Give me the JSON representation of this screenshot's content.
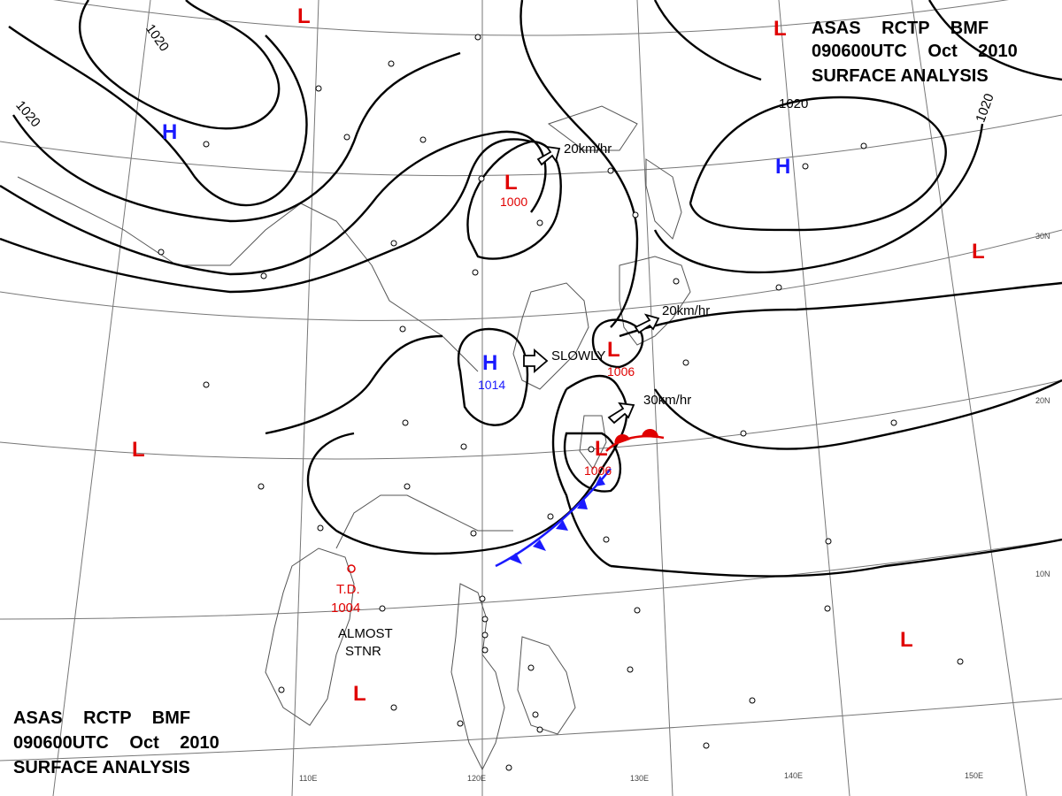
{
  "header_top": {
    "line1": "ASAS RCTP BMF",
    "line2": "090600UTC Oct 2010",
    "line3": "SURFACE ANALYSIS"
  },
  "header_bottom": {
    "line1": "ASAS RCTP BMF",
    "line2": "090600UTC Oct 2010",
    "line3": "SURFACE ANALYSIS"
  },
  "longitudes": [
    "110E",
    "120E",
    "130E",
    "140E",
    "150E"
  ],
  "latitudes": [
    "30N",
    "20N",
    "10N"
  ],
  "isobars": [
    "1020",
    "1020",
    "1020",
    "1020"
  ],
  "systems": {
    "high_nw": "H",
    "high_ne": "H",
    "high_center": {
      "symbol": "H",
      "pressure": "1014"
    },
    "low_north": {
      "symbol": "L",
      "pressure": "1000"
    },
    "low_east": {
      "symbol": "L",
      "pressure": "1006"
    },
    "low_front": {
      "symbol": "L",
      "pressure": "1006"
    },
    "td": {
      "label": "T.D.",
      "pressure": "1004"
    },
    "lows_misc": [
      "L",
      "L",
      "L",
      "L",
      "L",
      "L"
    ]
  },
  "motion": {
    "m1": "20km/hr",
    "m2": "20km/hr",
    "m3": "30km/hr",
    "m4": "SLOWLY",
    "m5": "ALMOST",
    "m6": "STNR"
  },
  "colors": {
    "high": "#1a1aff",
    "low": "#e00000",
    "cold_front": "#1a1aff",
    "warm_front": "#e00000"
  }
}
